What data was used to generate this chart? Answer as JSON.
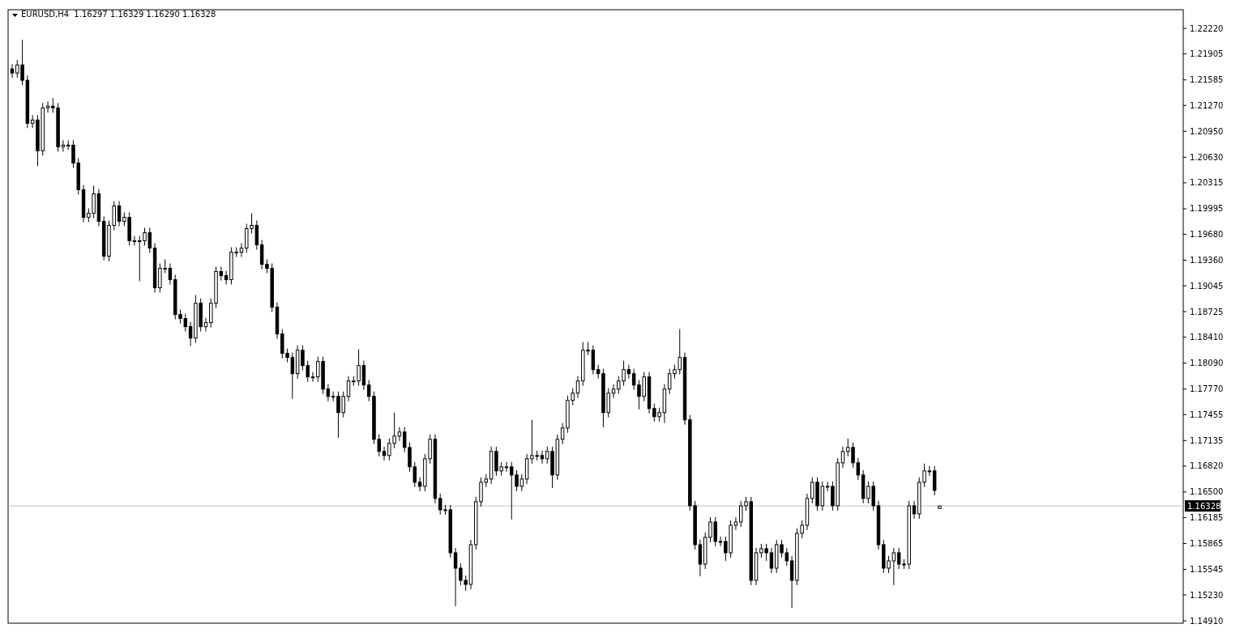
{
  "chart_data": {
    "type": "candlestick",
    "title": "EURUSD,H4  1.16297 1.16329 1.16290 1.16328",
    "color": "#000000",
    "categories": [
      null,
      null,
      null,
      null,
      null,
      null,
      null,
      null,
      null,
      null,
      null,
      null,
      null,
      null,
      null,
      null,
      null,
      null,
      null,
      null,
      null,
      null,
      null,
      null,
      null,
      null,
      null,
      null,
      null,
      null,
      null,
      null,
      null,
      null,
      null,
      null,
      null,
      null,
      null,
      null,
      null,
      null,
      null,
      null,
      null,
      null,
      null,
      null,
      null,
      null,
      null,
      null,
      null,
      null,
      null,
      null,
      null,
      null,
      null,
      null,
      null,
      null,
      null,
      null,
      null,
      null,
      null,
      null,
      null,
      null,
      null,
      null,
      null,
      null,
      null,
      null,
      null,
      null,
      null,
      null,
      null,
      null,
      null,
      null,
      null,
      null,
      null,
      null,
      null,
      null,
      null,
      null,
      null,
      null,
      null,
      null,
      null,
      null,
      null,
      null,
      null,
      null,
      null,
      null,
      null,
      null,
      null,
      null,
      null,
      null,
      null,
      null,
      null,
      null,
      null,
      null,
      null,
      null,
      null,
      null,
      null,
      null,
      null,
      null,
      null,
      null,
      null,
      null,
      null,
      null,
      null,
      null,
      null,
      null,
      null,
      null,
      null,
      null,
      null,
      null,
      null,
      null,
      null,
      null,
      null,
      null,
      null,
      null,
      null,
      null,
      null,
      null,
      null,
      null,
      null,
      null,
      null,
      null,
      null,
      null,
      null,
      null,
      null,
      null,
      null,
      null,
      null,
      null,
      null,
      null,
      null,
      null,
      null,
      null,
      null,
      null,
      null,
      null,
      null,
      null,
      null,
      null,
      null,
      null,
      null,
      null,
      null,
      null,
      null,
      null,
      null,
      null,
      null,
      null,
      null,
      null,
      null,
      null,
      null,
      null,
      null,
      null,
      null,
      null,
      null,
      null,
      null,
      null,
      null,
      null,
      null,
      null,
      null,
      null,
      null,
      null,
      null,
      null,
      null,
      null,
      null,
      null,
      null,
      null,
      null,
      null,
      null,
      null,
      null,
      null
    ],
    "ohlc": [
      [
        1.2172,
        1.2178,
        1.2161,
        1.2167
      ],
      [
        1.2167,
        1.2183,
        1.2161,
        1.2177
      ],
      [
        1.2177,
        1.2208,
        1.2152,
        1.2158
      ],
      [
        1.2158,
        1.2164,
        1.2099,
        1.2105
      ],
      [
        1.2105,
        1.2115,
        1.2099,
        1.2109
      ],
      [
        1.2109,
        1.2115,
        1.2052,
        1.2071
      ],
      [
        1.2071,
        1.213,
        1.2065,
        1.2124
      ],
      [
        1.2124,
        1.2132,
        1.2118,
        1.2126
      ],
      [
        1.2126,
        1.2136,
        1.2118,
        1.2124
      ],
      [
        1.2124,
        1.213,
        1.207,
        1.2076
      ],
      [
        1.2076,
        1.2084,
        1.207,
        1.2078
      ],
      [
        1.2078,
        1.2084,
        1.2072,
        1.2078
      ],
      [
        1.2078,
        1.2084,
        1.205,
        1.2056
      ],
      [
        1.2056,
        1.2062,
        1.2017,
        1.2023
      ],
      [
        1.2023,
        1.2029,
        1.1983,
        1.1989
      ],
      [
        1.1989,
        1.2,
        1.1983,
        1.1994
      ],
      [
        1.1994,
        1.2028,
        1.1988,
        1.2018
      ],
      [
        1.2018,
        1.2024,
        1.1978,
        1.1984
      ],
      [
        1.1984,
        1.199,
        1.1936,
        1.1941
      ],
      [
        1.1941,
        1.1985,
        1.1935,
        1.1979
      ],
      [
        1.1979,
        1.2009,
        1.1973,
        1.2003
      ],
      [
        1.2003,
        1.2009,
        1.1978,
        1.1984
      ],
      [
        1.1984,
        1.1995,
        1.1978,
        1.1989
      ],
      [
        1.1989,
        1.1995,
        1.1954,
        1.196
      ],
      [
        1.196,
        1.1966,
        1.1954,
        1.196
      ],
      [
        1.196,
        1.1966,
        1.191,
        1.196
      ],
      [
        1.196,
        1.1976,
        1.1954,
        1.197
      ],
      [
        1.197,
        1.1976,
        1.1945,
        1.1951
      ],
      [
        1.1951,
        1.1957,
        1.1896,
        1.1902
      ],
      [
        1.1902,
        1.1932,
        1.1896,
        1.1926
      ],
      [
        1.1926,
        1.1937,
        1.192,
        1.1926
      ],
      [
        1.1926,
        1.1932,
        1.1906,
        1.1912
      ],
      [
        1.1912,
        1.1918,
        1.1863,
        1.1869
      ],
      [
        1.1869,
        1.1875,
        1.1858,
        1.1864
      ],
      [
        1.1864,
        1.187,
        1.1848,
        1.1854
      ],
      [
        1.1854,
        1.186,
        1.183,
        1.184
      ],
      [
        1.184,
        1.1893,
        1.1834,
        1.1883
      ],
      [
        1.1883,
        1.1889,
        1.1848,
        1.1854
      ],
      [
        1.1854,
        1.1865,
        1.1848,
        1.1859
      ],
      [
        1.1859,
        1.1889,
        1.1853,
        1.1883
      ],
      [
        1.1883,
        1.1928,
        1.1877,
        1.1922
      ],
      [
        1.1922,
        1.1928,
        1.1911,
        1.1917
      ],
      [
        1.1917,
        1.1923,
        1.1906,
        1.1912
      ],
      [
        1.1912,
        1.1952,
        1.1906,
        1.1946
      ],
      [
        1.1946,
        1.1952,
        1.194,
        1.1946
      ],
      [
        1.1946,
        1.1957,
        1.194,
        1.1951
      ],
      [
        1.1951,
        1.1981,
        1.1945,
        1.1975
      ],
      [
        1.1975,
        1.1994,
        1.1969,
        1.1979
      ],
      [
        1.1979,
        1.1985,
        1.1949,
        1.1955
      ],
      [
        1.1955,
        1.1961,
        1.1925,
        1.1931
      ],
      [
        1.1931,
        1.1937,
        1.192,
        1.1926
      ],
      [
        1.1926,
        1.1932,
        1.1872,
        1.1878
      ],
      [
        1.1878,
        1.1884,
        1.1839,
        1.1845
      ],
      [
        1.1845,
        1.1851,
        1.1815,
        1.1821
      ],
      [
        1.1821,
        1.1827,
        1.181,
        1.1816
      ],
      [
        1.1816,
        1.1822,
        1.1765,
        1.1796
      ],
      [
        1.1796,
        1.1831,
        1.179,
        1.1825
      ],
      [
        1.1825,
        1.1831,
        1.18,
        1.1806
      ],
      [
        1.1806,
        1.1812,
        1.1786,
        1.1792
      ],
      [
        1.1792,
        1.1798,
        1.1786,
        1.1792
      ],
      [
        1.1792,
        1.1817,
        1.1786,
        1.1811
      ],
      [
        1.1811,
        1.1817,
        1.1771,
        1.1777
      ],
      [
        1.1777,
        1.1783,
        1.1762,
        1.1768
      ],
      [
        1.1768,
        1.1774,
        1.1762,
        1.1768
      ],
      [
        1.1768,
        1.1774,
        1.1717,
        1.1748
      ],
      [
        1.1748,
        1.1774,
        1.1742,
        1.1768
      ],
      [
        1.1768,
        1.1793,
        1.1762,
        1.1787
      ],
      [
        1.1787,
        1.1793,
        1.1781,
        1.1787
      ],
      [
        1.1787,
        1.1826,
        1.1781,
        1.1806
      ],
      [
        1.1806,
        1.1812,
        1.1776,
        1.1782
      ],
      [
        1.1782,
        1.1788,
        1.1762,
        1.1768
      ],
      [
        1.1768,
        1.1774,
        1.1709,
        1.1715
      ],
      [
        1.1715,
        1.1721,
        1.1694,
        1.17
      ],
      [
        1.17,
        1.1706,
        1.1689,
        1.1695
      ],
      [
        1.1695,
        1.1716,
        1.1689,
        1.171
      ],
      [
        1.171,
        1.1748,
        1.1704,
        1.1719
      ],
      [
        1.1719,
        1.173,
        1.1713,
        1.1724
      ],
      [
        1.1724,
        1.173,
        1.1699,
        1.1705
      ],
      [
        1.1705,
        1.1711,
        1.1675,
        1.1681
      ],
      [
        1.1681,
        1.1687,
        1.1656,
        1.1662
      ],
      [
        1.1662,
        1.1668,
        1.1651,
        1.1657
      ],
      [
        1.1657,
        1.1697,
        1.1651,
        1.1691
      ],
      [
        1.1691,
        1.1721,
        1.1685,
        1.1715
      ],
      [
        1.1715,
        1.1721,
        1.1636,
        1.1642
      ],
      [
        1.1642,
        1.1648,
        1.1622,
        1.1628
      ],
      [
        1.1628,
        1.1634,
        1.1622,
        1.1628
      ],
      [
        1.1628,
        1.1634,
        1.1569,
        1.1575
      ],
      [
        1.1575,
        1.1581,
        1.1509,
        1.1556
      ],
      [
        1.1556,
        1.1562,
        1.1535,
        1.1541
      ],
      [
        1.1541,
        1.1547,
        1.1528,
        1.1536
      ],
      [
        1.1536,
        1.1591,
        1.153,
        1.1585
      ],
      [
        1.1585,
        1.1644,
        1.1579,
        1.1638
      ],
      [
        1.1638,
        1.1668,
        1.1632,
        1.1662
      ],
      [
        1.1662,
        1.1672,
        1.1656,
        1.1666
      ],
      [
        1.1666,
        1.1706,
        1.166,
        1.17
      ],
      [
        1.17,
        1.1706,
        1.167,
        1.1676
      ],
      [
        1.1676,
        1.1687,
        1.167,
        1.1681
      ],
      [
        1.1681,
        1.1687,
        1.1675,
        1.1681
      ],
      [
        1.1681,
        1.1687,
        1.1616,
        1.1671
      ],
      [
        1.1671,
        1.1677,
        1.1651,
        1.1657
      ],
      [
        1.1657,
        1.1672,
        1.1651,
        1.1666
      ],
      [
        1.1666,
        1.1697,
        1.166,
        1.1691
      ],
      [
        1.1691,
        1.1739,
        1.1685,
        1.1695
      ],
      [
        1.1695,
        1.1701,
        1.1689,
        1.1695
      ],
      [
        1.1695,
        1.1701,
        1.1685,
        1.1691
      ],
      [
        1.1691,
        1.1706,
        1.1685,
        1.17
      ],
      [
        1.17,
        1.1706,
        1.1655,
        1.1671
      ],
      [
        1.1671,
        1.1721,
        1.1665,
        1.1715
      ],
      [
        1.1715,
        1.1735,
        1.1709,
        1.1729
      ],
      [
        1.1729,
        1.1769,
        1.1723,
        1.1763
      ],
      [
        1.1763,
        1.1778,
        1.1757,
        1.1772
      ],
      [
        1.1772,
        1.1793,
        1.1766,
        1.1787
      ],
      [
        1.1787,
        1.1835,
        1.1781,
        1.1825
      ],
      [
        1.1825,
        1.1835,
        1.1819,
        1.1825
      ],
      [
        1.1825,
        1.1831,
        1.1795,
        1.1801
      ],
      [
        1.1801,
        1.1807,
        1.179,
        1.1796
      ],
      [
        1.1796,
        1.1802,
        1.173,
        1.1748
      ],
      [
        1.1748,
        1.1778,
        1.1742,
        1.1772
      ],
      [
        1.1772,
        1.1783,
        1.1766,
        1.1777
      ],
      [
        1.1777,
        1.1793,
        1.1771,
        1.1787
      ],
      [
        1.1787,
        1.1812,
        1.1781,
        1.1801
      ],
      [
        1.1801,
        1.1807,
        1.179,
        1.1796
      ],
      [
        1.1796,
        1.1802,
        1.1776,
        1.1782
      ],
      [
        1.1782,
        1.1788,
        1.1752,
        1.1768
      ],
      [
        1.1768,
        1.1798,
        1.1762,
        1.1792
      ],
      [
        1.1792,
        1.1798,
        1.1747,
        1.1753
      ],
      [
        1.1753,
        1.1759,
        1.1737,
        1.1743
      ],
      [
        1.1743,
        1.1754,
        1.1737,
        1.1748
      ],
      [
        1.1748,
        1.1783,
        1.1735,
        1.1777
      ],
      [
        1.1777,
        1.1802,
        1.1771,
        1.1796
      ],
      [
        1.1796,
        1.1807,
        1.179,
        1.1801
      ],
      [
        1.1801,
        1.1851,
        1.1795,
        1.1816
      ],
      [
        1.1816,
        1.1822,
        1.1733,
        1.1739
      ],
      [
        1.1739,
        1.1745,
        1.1627,
        1.1633
      ],
      [
        1.1633,
        1.1639,
        1.1579,
        1.1585
      ],
      [
        1.1585,
        1.1591,
        1.1546,
        1.1561
      ],
      [
        1.1561,
        1.16,
        1.1555,
        1.1594
      ],
      [
        1.1594,
        1.1619,
        1.1588,
        1.1613
      ],
      [
        1.1613,
        1.1619,
        1.1583,
        1.1589
      ],
      [
        1.1589,
        1.1595,
        1.1583,
        1.1589
      ],
      [
        1.1589,
        1.1595,
        1.1565,
        1.1575
      ],
      [
        1.1575,
        1.1615,
        1.1569,
        1.1609
      ],
      [
        1.1609,
        1.1619,
        1.1603,
        1.1613
      ],
      [
        1.1613,
        1.1639,
        1.1607,
        1.1633
      ],
      [
        1.1633,
        1.1644,
        1.1627,
        1.1638
      ],
      [
        1.1638,
        1.1644,
        1.1535,
        1.1541
      ],
      [
        1.1541,
        1.1581,
        1.1535,
        1.1575
      ],
      [
        1.1575,
        1.1586,
        1.1569,
        1.158
      ],
      [
        1.158,
        1.1586,
        1.1565,
        1.1575
      ],
      [
        1.1575,
        1.1581,
        1.155,
        1.1556
      ],
      [
        1.1556,
        1.1591,
        1.155,
        1.1585
      ],
      [
        1.1585,
        1.1591,
        1.1569,
        1.1575
      ],
      [
        1.1575,
        1.1581,
        1.1559,
        1.1565
      ],
      [
        1.1565,
        1.1571,
        1.1507,
        1.1541
      ],
      [
        1.1541,
        1.1605,
        1.1535,
        1.1599
      ],
      [
        1.1599,
        1.1615,
        1.1593,
        1.1609
      ],
      [
        1.1609,
        1.1648,
        1.1603,
        1.1642
      ],
      [
        1.1642,
        1.1668,
        1.1636,
        1.1662
      ],
      [
        1.1662,
        1.1668,
        1.1627,
        1.1633
      ],
      [
        1.1633,
        1.1663,
        1.1627,
        1.1657
      ],
      [
        1.1657,
        1.1663,
        1.1651,
        1.1657
      ],
      [
        1.1657,
        1.1663,
        1.1627,
        1.1633
      ],
      [
        1.1633,
        1.1692,
        1.1627,
        1.1686
      ],
      [
        1.1686,
        1.1706,
        1.168,
        1.17
      ],
      [
        1.17,
        1.1716,
        1.1694,
        1.1705
      ],
      [
        1.1705,
        1.1711,
        1.168,
        1.1686
      ],
      [
        1.1686,
        1.1692,
        1.1665,
        1.1671
      ],
      [
        1.1671,
        1.1677,
        1.1636,
        1.1642
      ],
      [
        1.1642,
        1.1663,
        1.1636,
        1.1657
      ],
      [
        1.1657,
        1.1663,
        1.1627,
        1.1633
      ],
      [
        1.1633,
        1.1639,
        1.1579,
        1.1585
      ],
      [
        1.1585,
        1.1591,
        1.155,
        1.1556
      ],
      [
        1.1556,
        1.1571,
        1.155,
        1.1565
      ],
      [
        1.1565,
        1.1581,
        1.1535,
        1.1575
      ],
      [
        1.1575,
        1.1581,
        1.1555,
        1.1561
      ],
      [
        1.1561,
        1.1567,
        1.1555,
        1.1561
      ],
      [
        1.1561,
        1.1639,
        1.1555,
        1.1633
      ],
      [
        1.1633,
        1.1639,
        1.1617,
        1.1623
      ],
      [
        1.1623,
        1.1668,
        1.1617,
        1.1662
      ],
      [
        1.1662,
        1.1685,
        1.1656,
        1.1676
      ],
      [
        1.1676,
        1.1682,
        1.167,
        1.1676
      ],
      [
        1.1676,
        1.1682,
        1.1646,
        1.1652
      ],
      [
        1.16297,
        1.16329,
        1.1629,
        1.16328
      ],
      null,
      null,
      null,
      null,
      null,
      null,
      null,
      null,
      null,
      null,
      null,
      null,
      null,
      null,
      null,
      null,
      null,
      null,
      null,
      null,
      null,
      null,
      null,
      null,
      null,
      null,
      null,
      null,
      null,
      null,
      null,
      null,
      null,
      null,
      null,
      null,
      null,
      null,
      null,
      null,
      null,
      null,
      null,
      null,
      null,
      null,
      null
    ],
    "ylim": [
      1.14881,
      1.22451
    ],
    "yticks": [
      {
        "value": 1.1491,
        "label": "1.14910"
      },
      {
        "value": 1.1523,
        "label": "1.15230"
      },
      {
        "value": 1.15545,
        "label": "1.15545"
      },
      {
        "value": 1.15865,
        "label": "1.15865"
      },
      {
        "value": 1.16185,
        "label": "1.16185"
      },
      {
        "value": 1.165,
        "label": "1.16500"
      },
      {
        "value": 1.1682,
        "label": "1.16820"
      },
      {
        "value": 1.17135,
        "label": "1.17135"
      },
      {
        "value": 1.17455,
        "label": "1.17455"
      },
      {
        "value": 1.1777,
        "label": "1.17770"
      },
      {
        "value": 1.1809,
        "label": "1.18090"
      },
      {
        "value": 1.1841,
        "label": "1.18410"
      },
      {
        "value": 1.18725,
        "label": "1.18725"
      },
      {
        "value": 1.19045,
        "label": "1.19045"
      },
      {
        "value": 1.1936,
        "label": "1.19360"
      },
      {
        "value": 1.1968,
        "label": "1.19680"
      },
      {
        "value": 1.19995,
        "label": "1.19995"
      },
      {
        "value": 1.20315,
        "label": "1.20315"
      },
      {
        "value": 1.2063,
        "label": "1.20630"
      },
      {
        "value": 1.2095,
        "label": "1.20950"
      },
      {
        "value": 1.2127,
        "label": "1.21270"
      },
      {
        "value": 1.21585,
        "label": "1.21585"
      },
      {
        "value": 1.21905,
        "label": "1.21905"
      },
      {
        "value": 1.2222,
        "label": "1.22220"
      }
    ],
    "ref_lines": [
      {
        "axis": "y",
        "value": 1.16328,
        "label": "1.16328",
        "color": "#c0c0c0"
      }
    ]
  }
}
